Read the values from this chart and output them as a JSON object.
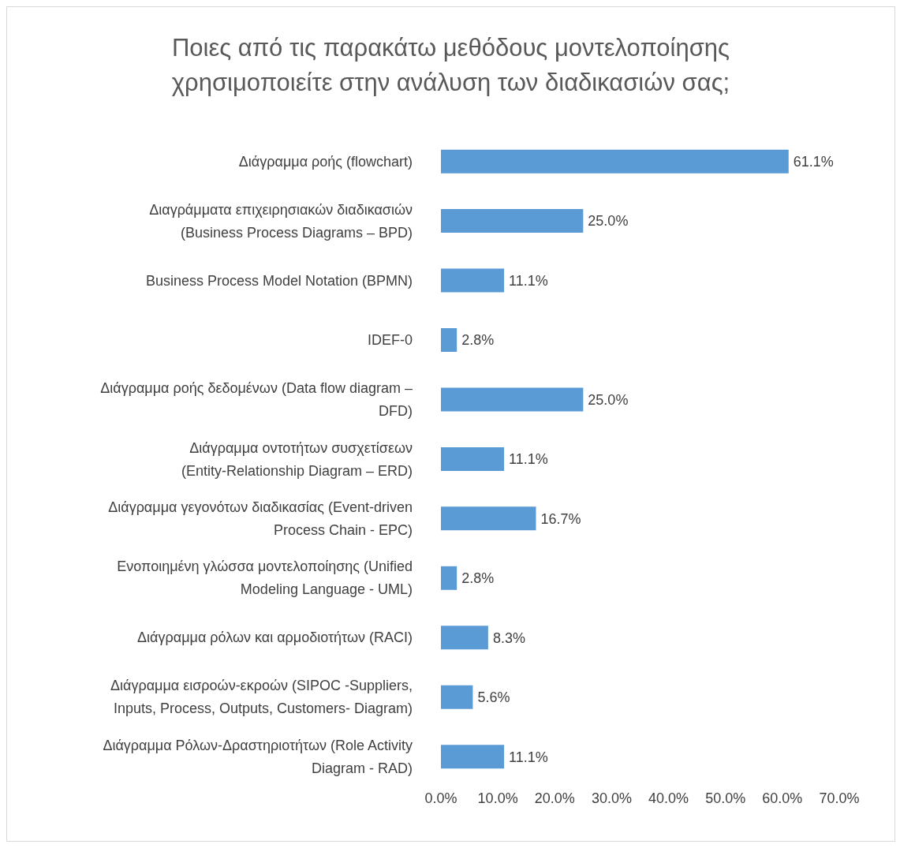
{
  "chart_data": {
    "type": "bar",
    "orientation": "horizontal",
    "title": "Ποιες από τις παρακάτω μεθόδους μοντελοποίησης χρησιμοποιείτε στην ανάλυση των διαδικασιών σας;",
    "categories": [
      "Διάγραμμα ροής (flowchart)",
      "Διαγράμματα επιχειρησιακών διαδικασιών (Business Process Diagrams – BPD)",
      "Business Process Model Notation (BPMN)",
      "IDEF-0",
      "Διάγραμμα ροής δεδομένων (Data flow diagram – DFD)",
      "Διάγραμμα οντοτήτων συσχετίσεων (Entity-Relationship Diagram – ERD)",
      "Διάγραμμα γεγονότων διαδικασίας (Event-driven Process Chain - EPC)",
      "Ενοποιημένη γλώσσα μοντελοποίησης (Unified Modeling Language - UML)",
      "Διάγραμμα ρόλων και αρμοδιοτήτων (RACI)",
      "Διάγραμμα εισροών-εκροών (SIPOC -Suppliers, Inputs, Process, Outputs, Customers-  Diagram)",
      "Διάγραμμα Ρόλων-Δραστηριοτήτων (Role Activity Diagram - RAD)"
    ],
    "values": [
      61.1,
      25.0,
      11.1,
      2.8,
      25.0,
      11.1,
      16.7,
      2.8,
      8.3,
      5.6,
      11.1
    ],
    "value_labels": [
      "61.1%",
      "25.0%",
      "11.1%",
      "2.8%",
      "25.0%",
      "11.1%",
      "16.7%",
      "2.8%",
      "8.3%",
      "5.6%",
      "11.1%"
    ],
    "color": "#5b9bd5",
    "xlim": [
      0,
      70
    ],
    "xticks": [
      {
        "value": 0,
        "label": "0.0%"
      },
      {
        "value": 10,
        "label": "10.0%"
      },
      {
        "value": 20,
        "label": "20.0%"
      },
      {
        "value": 30,
        "label": "30.0%"
      },
      {
        "value": 40,
        "label": "40.0%"
      },
      {
        "value": 50,
        "label": "50.0%"
      },
      {
        "value": 60,
        "label": "60.0%"
      },
      {
        "value": 70,
        "label": "70.0%"
      }
    ],
    "grid": false,
    "legend": false
  }
}
